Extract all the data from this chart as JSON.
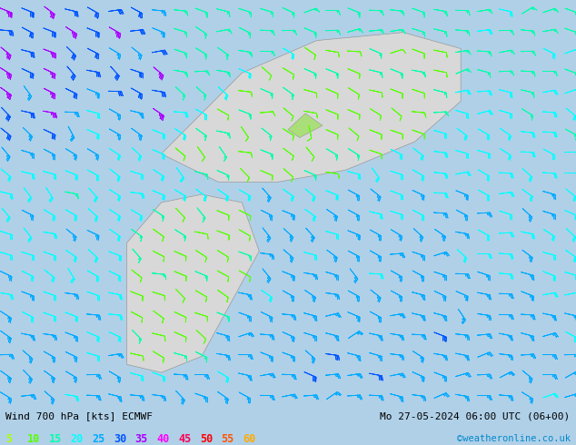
{
  "title_left": "Wind 700 hPa [kts] ECMWF",
  "title_right": "Mo 27-05-2024 06:00 UTC (06+00)",
  "credit": "©weatheronline.co.uk",
  "legend_values": [
    5,
    10,
    15,
    20,
    25,
    30,
    35,
    40,
    45,
    50,
    55,
    60
  ],
  "legend_colors": [
    "#aaff00",
    "#55ff00",
    "#00ffaa",
    "#00ffff",
    "#00aaff",
    "#0055ff",
    "#aa00ff",
    "#ff00ff",
    "#ff0055",
    "#ff0000",
    "#ff5500",
    "#ffaa00"
  ],
  "bg_land_color": "#aade78",
  "bg_sea_color": "#d8d8d8",
  "fig_bg": "#b0d0e8",
  "figsize": [
    6.34,
    4.9
  ],
  "dpi": 100,
  "bottom_bar_color": "#f0f0f0"
}
